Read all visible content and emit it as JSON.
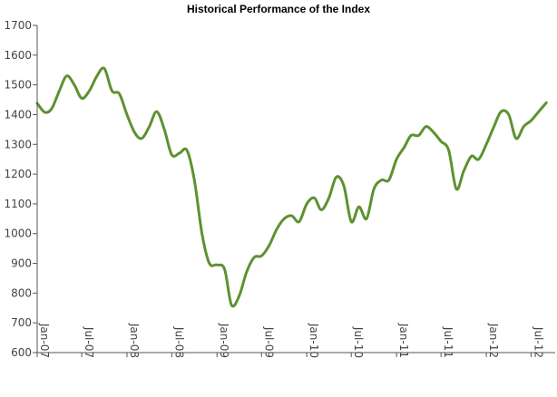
{
  "chart_data": {
    "type": "line",
    "title": "Historical Performance of the Index",
    "xlabel": "",
    "ylabel": "",
    "ylim": [
      600,
      1700
    ],
    "yticks": [
      600,
      700,
      800,
      900,
      1000,
      1100,
      1200,
      1300,
      1400,
      1500,
      1600,
      1700
    ],
    "xticks": [
      "Jan-07",
      "Jul-07",
      "Jan-08",
      "Jul-08",
      "Jan-09",
      "Jul-09",
      "Jan-10",
      "Jul-10",
      "Jan-11",
      "Jul-11",
      "Jan-12",
      "Jul-12"
    ],
    "grid": false,
    "legend": "none",
    "series": [
      {
        "color": "#5e9130",
        "x": [
          "2007-01-01",
          "2007-02-01",
          "2007-03-01",
          "2007-04-01",
          "2007-05-01",
          "2007-06-01",
          "2007-07-01",
          "2007-08-01",
          "2007-09-01",
          "2007-10-01",
          "2007-11-01",
          "2007-12-01",
          "2008-01-01",
          "2008-02-01",
          "2008-03-01",
          "2008-04-01",
          "2008-05-01",
          "2008-06-01",
          "2008-07-01",
          "2008-08-01",
          "2008-09-01",
          "2008-10-01",
          "2008-11-01",
          "2008-12-01",
          "2009-01-01",
          "2009-02-01",
          "2009-03-01",
          "2009-04-01",
          "2009-05-01",
          "2009-06-01",
          "2009-07-01",
          "2009-08-01",
          "2009-09-01",
          "2009-10-01",
          "2009-11-01",
          "2009-12-01",
          "2010-01-01",
          "2010-02-01",
          "2010-03-01",
          "2010-04-01",
          "2010-05-01",
          "2010-06-01",
          "2010-07-01",
          "2010-08-01",
          "2010-09-01",
          "2010-10-01",
          "2010-11-01",
          "2010-12-01",
          "2011-01-01",
          "2011-02-01",
          "2011-03-01",
          "2011-04-01",
          "2011-05-01",
          "2011-06-01",
          "2011-07-01",
          "2011-08-01",
          "2011-09-01",
          "2011-10-01",
          "2011-11-01",
          "2011-12-01",
          "2012-01-01",
          "2012-02-01",
          "2012-03-01",
          "2012-04-01",
          "2012-05-01",
          "2012-06-01",
          "2012-07-01",
          "2012-08-01",
          "2012-09-01"
        ],
        "values": [
          1438,
          1408,
          1420,
          1480,
          1530,
          1500,
          1455,
          1480,
          1530,
          1555,
          1480,
          1470,
          1400,
          1340,
          1320,
          1360,
          1410,
          1350,
          1265,
          1270,
          1280,
          1180,
          1000,
          900,
          895,
          880,
          760,
          790,
          870,
          920,
          925,
          960,
          1015,
          1050,
          1060,
          1040,
          1100,
          1120,
          1080,
          1120,
          1190,
          1160,
          1040,
          1090,
          1050,
          1150,
          1180,
          1180,
          1250,
          1290,
          1330,
          1330,
          1360,
          1340,
          1310,
          1280,
          1150,
          1210,
          1260,
          1250,
          1300,
          1360,
          1410,
          1400,
          1320,
          1360,
          1380,
          1410,
          1440
        ]
      }
    ]
  }
}
